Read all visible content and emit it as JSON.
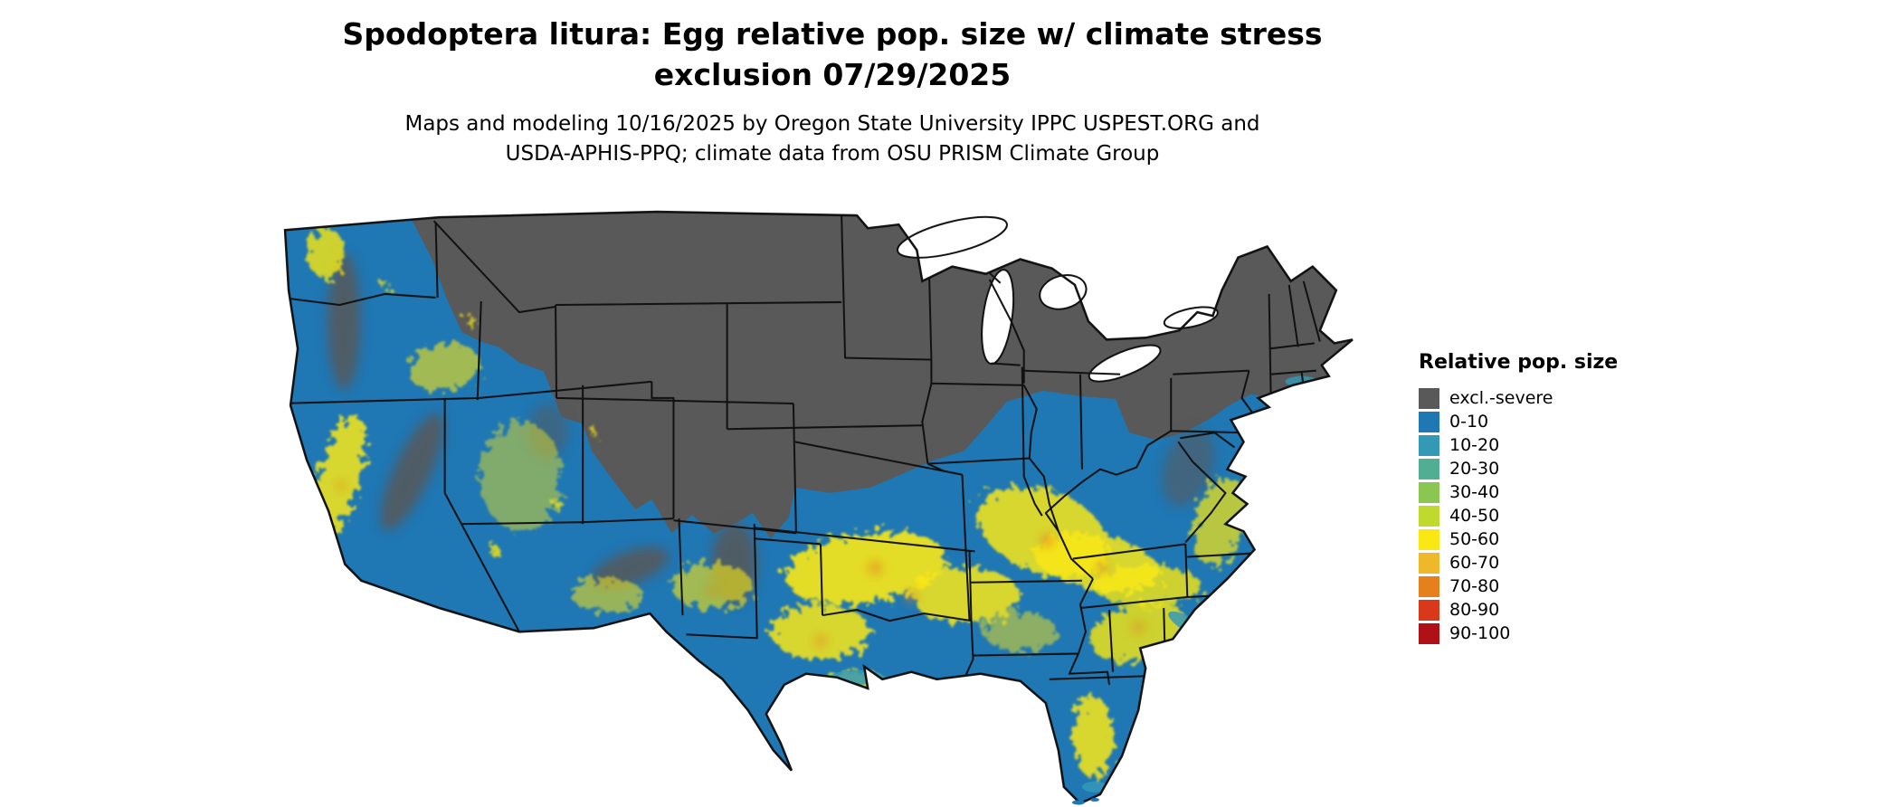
{
  "title": {
    "line1": "Spodoptera litura: Egg relative pop. size w/ climate stress",
    "line2": "exclusion 07/29/2025"
  },
  "subtitle": {
    "line1": "Maps and modeling 10/16/2025 by Oregon State University IPPC USPEST.ORG and",
    "line2": "USDA-APHIS-PPQ; climate data from OSU PRISM Climate Group"
  },
  "legend": {
    "title": "Relative pop. size",
    "items": [
      {
        "label": "excl.-severe",
        "color": "#595959"
      },
      {
        "label": "0-10",
        "color": "#1F77B4"
      },
      {
        "label": "10-20",
        "color": "#3499B7"
      },
      {
        "label": "20-30",
        "color": "#52AE92"
      },
      {
        "label": "30-40",
        "color": "#8BC653"
      },
      {
        "label": "40-50",
        "color": "#BFD92E"
      },
      {
        "label": "50-60",
        "color": "#F9E814"
      },
      {
        "label": "60-70",
        "color": "#EDB829"
      },
      {
        "label": "70-80",
        "color": "#E5801C"
      },
      {
        "label": "80-90",
        "color": "#D9391A"
      },
      {
        "label": "90-100",
        "color": "#B01117"
      }
    ]
  },
  "chart_data": {
    "type": "heatmap",
    "title": "Spodoptera litura: Egg relative pop. size w/ climate stress exclusion 07/29/2025",
    "region_shown": "Contiguous United States",
    "legend_title": "Relative pop. size",
    "classes": [
      "excl.-severe",
      "0-10",
      "10-20",
      "20-30",
      "30-40",
      "40-50",
      "50-60",
      "60-70",
      "70-80",
      "80-90",
      "90-100"
    ],
    "class_colors": [
      "#595959",
      "#1F77B4",
      "#3499B7",
      "#52AE92",
      "#8BC653",
      "#BFD92E",
      "#F9E814",
      "#EDB829",
      "#E5801C",
      "#D9391A",
      "#B01117"
    ],
    "legend_position": "right",
    "notes_visible_pattern": "Northern tier of states excluded (dark gray); most of the country low relative population (blue 0-10); bands of higher values (yellow 50-60 with orange spots) across the southern plains, mid-south, southeast, central Texas, Florida, California valleys and scattered Great Basin areas."
  }
}
